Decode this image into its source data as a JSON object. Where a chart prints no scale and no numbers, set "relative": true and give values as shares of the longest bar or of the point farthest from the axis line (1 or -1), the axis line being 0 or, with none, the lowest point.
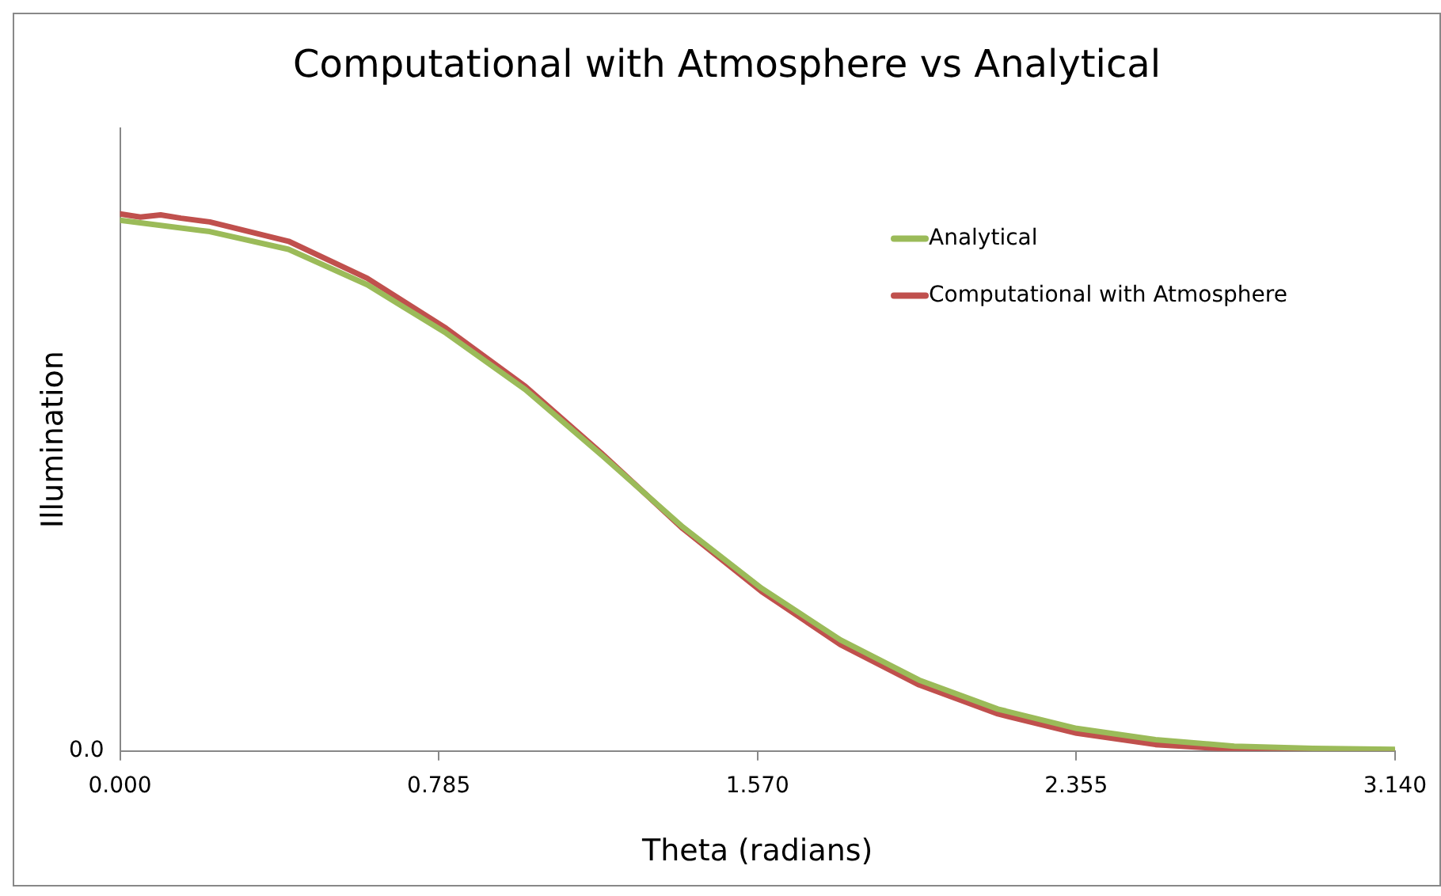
{
  "chart_data": {
    "type": "line",
    "title": "Computational with Atmosphere vs Analytical",
    "xlabel": "Theta (radians)",
    "ylabel": "Illumination",
    "relative": true,
    "xlim": [
      0,
      3.14
    ],
    "xticks": [
      {
        "value": 0,
        "label": "0.000"
      },
      {
        "value": 0.785,
        "label": "0.785"
      },
      {
        "value": 1.57,
        "label": "1.570"
      },
      {
        "value": 2.355,
        "label": "2.355"
      },
      {
        "value": 3.14,
        "label": "3.140"
      }
    ],
    "series": [
      {
        "name": "Analytical",
        "color": "#9bbb59",
        "x": [
          0,
          0.221,
          0.415,
          0.609,
          0.803,
          0.998,
          1.192,
          1.386,
          1.58,
          1.774,
          1.968,
          2.162,
          2.356,
          2.55,
          2.744,
          2.938,
          3.14
        ],
        "values": [
          0.988,
          0.967,
          0.934,
          0.868,
          0.778,
          0.673,
          0.547,
          0.417,
          0.303,
          0.207,
          0.132,
          0.078,
          0.042,
          0.021,
          0.009,
          0.005,
          0.003
        ]
      },
      {
        "name": "Computational with Atmosphere",
        "color": "#c0504d",
        "x": [
          0,
          0.05,
          0.1,
          0.15,
          0.221,
          0.415,
          0.609,
          0.803,
          0.998,
          1.192,
          1.386,
          1.58,
          1.774,
          1.968,
          2.162,
          2.356,
          2.55,
          2.744,
          2.938,
          3.14
        ],
        "values": [
          1.0,
          0.994,
          0.998,
          0.992,
          0.985,
          0.949,
          0.88,
          0.787,
          0.679,
          0.55,
          0.414,
          0.297,
          0.198,
          0.123,
          0.069,
          0.033,
          0.012,
          0.003,
          0,
          0
        ]
      }
    ],
    "annotations": [
      "0.0"
    ],
    "grid": false,
    "legend": "top right",
    "marker": "none",
    "line_style": "solid"
  }
}
